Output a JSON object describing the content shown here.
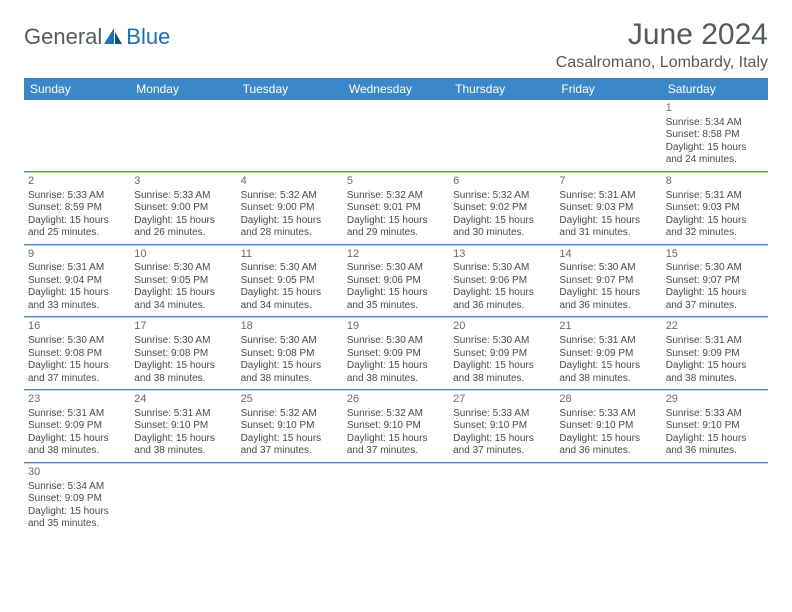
{
  "brand": {
    "part1": "General",
    "part2": "Blue"
  },
  "header": {
    "month_title": "June 2024",
    "location": "Casalromano, Lombardy, Italy"
  },
  "colors": {
    "header_bg": "#3b87c8",
    "header_text": "#ffffff",
    "body_text": "#4a4a4a",
    "title_text": "#555a5f",
    "brand_blue": "#1a6fb5",
    "row_divider": "#3b87c8",
    "cell_divider": "#d0d0d0"
  },
  "day_labels": [
    "Sunday",
    "Monday",
    "Tuesday",
    "Wednesday",
    "Thursday",
    "Friday",
    "Saturday"
  ],
  "weeks": [
    [
      null,
      null,
      null,
      null,
      null,
      null,
      {
        "n": "1",
        "sr": "Sunrise: 5:34 AM",
        "ss": "Sunset: 8:58 PM",
        "d1": "Daylight: 15 hours",
        "d2": "and 24 minutes."
      }
    ],
    [
      {
        "n": "2",
        "sr": "Sunrise: 5:33 AM",
        "ss": "Sunset: 8:59 PM",
        "d1": "Daylight: 15 hours",
        "d2": "and 25 minutes."
      },
      {
        "n": "3",
        "sr": "Sunrise: 5:33 AM",
        "ss": "Sunset: 9:00 PM",
        "d1": "Daylight: 15 hours",
        "d2": "and 26 minutes."
      },
      {
        "n": "4",
        "sr": "Sunrise: 5:32 AM",
        "ss": "Sunset: 9:00 PM",
        "d1": "Daylight: 15 hours",
        "d2": "and 28 minutes."
      },
      {
        "n": "5",
        "sr": "Sunrise: 5:32 AM",
        "ss": "Sunset: 9:01 PM",
        "d1": "Daylight: 15 hours",
        "d2": "and 29 minutes."
      },
      {
        "n": "6",
        "sr": "Sunrise: 5:32 AM",
        "ss": "Sunset: 9:02 PM",
        "d1": "Daylight: 15 hours",
        "d2": "and 30 minutes."
      },
      {
        "n": "7",
        "sr": "Sunrise: 5:31 AM",
        "ss": "Sunset: 9:03 PM",
        "d1": "Daylight: 15 hours",
        "d2": "and 31 minutes."
      },
      {
        "n": "8",
        "sr": "Sunrise: 5:31 AM",
        "ss": "Sunset: 9:03 PM",
        "d1": "Daylight: 15 hours",
        "d2": "and 32 minutes."
      }
    ],
    [
      {
        "n": "9",
        "sr": "Sunrise: 5:31 AM",
        "ss": "Sunset: 9:04 PM",
        "d1": "Daylight: 15 hours",
        "d2": "and 33 minutes."
      },
      {
        "n": "10",
        "sr": "Sunrise: 5:30 AM",
        "ss": "Sunset: 9:05 PM",
        "d1": "Daylight: 15 hours",
        "d2": "and 34 minutes."
      },
      {
        "n": "11",
        "sr": "Sunrise: 5:30 AM",
        "ss": "Sunset: 9:05 PM",
        "d1": "Daylight: 15 hours",
        "d2": "and 34 minutes."
      },
      {
        "n": "12",
        "sr": "Sunrise: 5:30 AM",
        "ss": "Sunset: 9:06 PM",
        "d1": "Daylight: 15 hours",
        "d2": "and 35 minutes."
      },
      {
        "n": "13",
        "sr": "Sunrise: 5:30 AM",
        "ss": "Sunset: 9:06 PM",
        "d1": "Daylight: 15 hours",
        "d2": "and 36 minutes."
      },
      {
        "n": "14",
        "sr": "Sunrise: 5:30 AM",
        "ss": "Sunset: 9:07 PM",
        "d1": "Daylight: 15 hours",
        "d2": "and 36 minutes."
      },
      {
        "n": "15",
        "sr": "Sunrise: 5:30 AM",
        "ss": "Sunset: 9:07 PM",
        "d1": "Daylight: 15 hours",
        "d2": "and 37 minutes."
      }
    ],
    [
      {
        "n": "16",
        "sr": "Sunrise: 5:30 AM",
        "ss": "Sunset: 9:08 PM",
        "d1": "Daylight: 15 hours",
        "d2": "and 37 minutes."
      },
      {
        "n": "17",
        "sr": "Sunrise: 5:30 AM",
        "ss": "Sunset: 9:08 PM",
        "d1": "Daylight: 15 hours",
        "d2": "and 38 minutes."
      },
      {
        "n": "18",
        "sr": "Sunrise: 5:30 AM",
        "ss": "Sunset: 9:08 PM",
        "d1": "Daylight: 15 hours",
        "d2": "and 38 minutes."
      },
      {
        "n": "19",
        "sr": "Sunrise: 5:30 AM",
        "ss": "Sunset: 9:09 PM",
        "d1": "Daylight: 15 hours",
        "d2": "and 38 minutes."
      },
      {
        "n": "20",
        "sr": "Sunrise: 5:30 AM",
        "ss": "Sunset: 9:09 PM",
        "d1": "Daylight: 15 hours",
        "d2": "and 38 minutes."
      },
      {
        "n": "21",
        "sr": "Sunrise: 5:31 AM",
        "ss": "Sunset: 9:09 PM",
        "d1": "Daylight: 15 hours",
        "d2": "and 38 minutes."
      },
      {
        "n": "22",
        "sr": "Sunrise: 5:31 AM",
        "ss": "Sunset: 9:09 PM",
        "d1": "Daylight: 15 hours",
        "d2": "and 38 minutes."
      }
    ],
    [
      {
        "n": "23",
        "sr": "Sunrise: 5:31 AM",
        "ss": "Sunset: 9:09 PM",
        "d1": "Daylight: 15 hours",
        "d2": "and 38 minutes."
      },
      {
        "n": "24",
        "sr": "Sunrise: 5:31 AM",
        "ss": "Sunset: 9:10 PM",
        "d1": "Daylight: 15 hours",
        "d2": "and 38 minutes."
      },
      {
        "n": "25",
        "sr": "Sunrise: 5:32 AM",
        "ss": "Sunset: 9:10 PM",
        "d1": "Daylight: 15 hours",
        "d2": "and 37 minutes."
      },
      {
        "n": "26",
        "sr": "Sunrise: 5:32 AM",
        "ss": "Sunset: 9:10 PM",
        "d1": "Daylight: 15 hours",
        "d2": "and 37 minutes."
      },
      {
        "n": "27",
        "sr": "Sunrise: 5:33 AM",
        "ss": "Sunset: 9:10 PM",
        "d1": "Daylight: 15 hours",
        "d2": "and 37 minutes."
      },
      {
        "n": "28",
        "sr": "Sunrise: 5:33 AM",
        "ss": "Sunset: 9:10 PM",
        "d1": "Daylight: 15 hours",
        "d2": "and 36 minutes."
      },
      {
        "n": "29",
        "sr": "Sunrise: 5:33 AM",
        "ss": "Sunset: 9:10 PM",
        "d1": "Daylight: 15 hours",
        "d2": "and 36 minutes."
      }
    ],
    [
      {
        "n": "30",
        "sr": "Sunrise: 5:34 AM",
        "ss": "Sunset: 9:09 PM",
        "d1": "Daylight: 15 hours",
        "d2": "and 35 minutes."
      },
      null,
      null,
      null,
      null,
      null,
      null
    ]
  ]
}
